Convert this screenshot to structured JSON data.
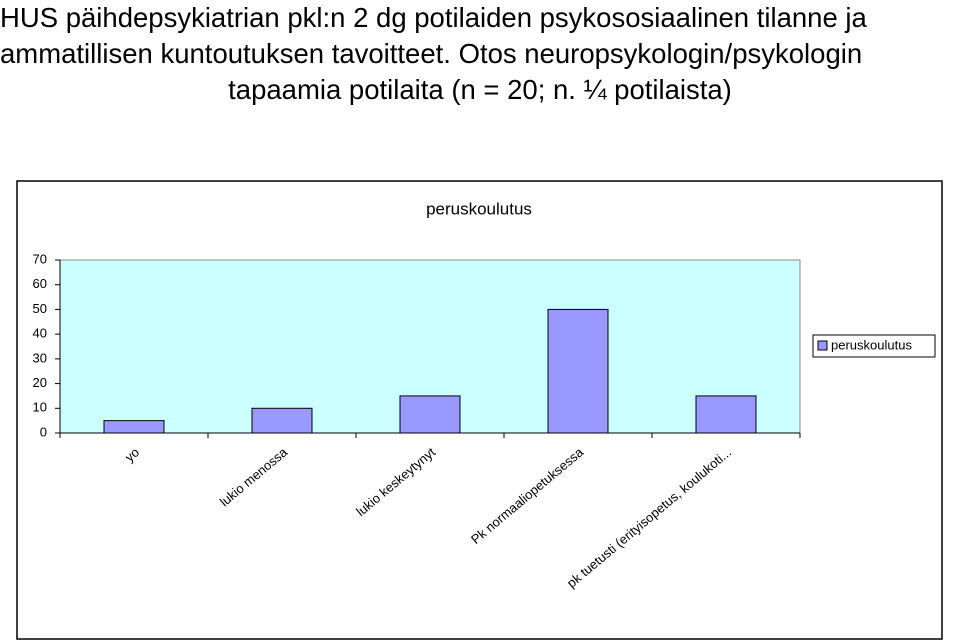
{
  "title_lines": [
    "HUS päihdepsykiatrian pkl:n 2 dg potilaiden psykososiaalinen tilanne ja",
    "ammatillisen kuntoutuksen tavoitteet. Otos neuropsykologin/psykologin",
    "tapaamia potilaita (n = 20; n. ¼ potilaista)"
  ],
  "chart_data": {
    "type": "bar",
    "title": "peruskoulutus",
    "categories": [
      "yo",
      "lukio menossa",
      "lukio keskeytynyt",
      "Pk normaaliopetuksessa",
      "pk tuetusti (erityisopetus, koulukoti..."
    ],
    "series": [
      {
        "name": "peruskoulutus",
        "color": "#9999ff",
        "values": [
          5,
          10,
          15,
          50,
          15
        ]
      }
    ],
    "ylim": [
      0,
      70
    ],
    "yticks": [
      0,
      10,
      20,
      30,
      40,
      50,
      60,
      70
    ],
    "grid": false,
    "legend": "right",
    "plot_background": "#ccffff"
  }
}
